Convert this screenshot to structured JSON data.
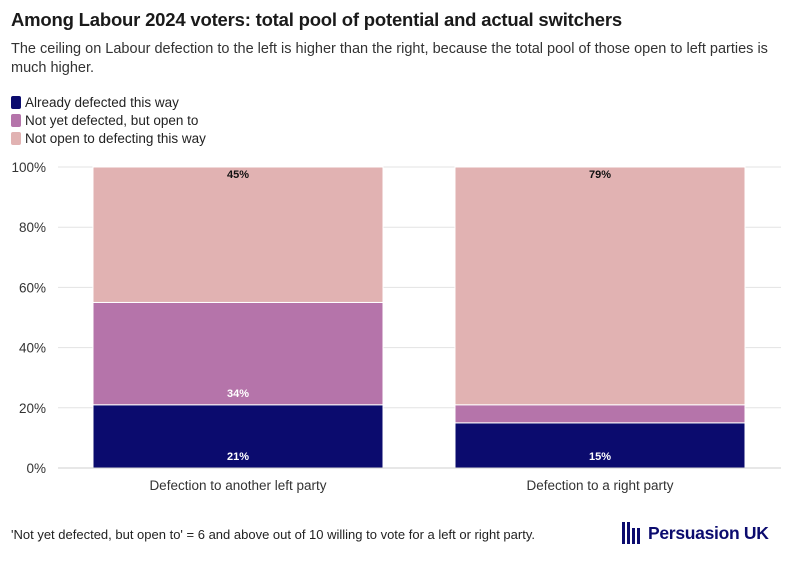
{
  "title": "Among Labour 2024 voters: total pool of potential and actual switchers",
  "subtitle": "The ceiling on Labour defection to the left is higher than the right, because the total pool of those open to left parties is much higher.",
  "footnote": "'Not yet defected, but open to' = 6 and above out of 10 willing to vote for a left or right party.",
  "brand": {
    "name": "Persuasion UK",
    "icon": "bars-logo-icon",
    "color": "#0b0b6e"
  },
  "chart_data": {
    "type": "bar",
    "stacked": true,
    "categories": [
      "Defection to another left party",
      "Defection to a right party"
    ],
    "series": [
      {
        "name": "Already defected this way",
        "color": "#0b0b6e",
        "values": [
          21,
          15
        ],
        "labels": [
          "21%",
          "15%"
        ]
      },
      {
        "name": "Not yet defected, but open to",
        "color": "#b574aa",
        "values": [
          34,
          6
        ],
        "labels": [
          "34%",
          ""
        ]
      },
      {
        "name": "Not open to defecting this way",
        "color": "#e1b2b2",
        "values": [
          45,
          79
        ],
        "labels": [
          "45%",
          "79%"
        ]
      }
    ],
    "ylim": [
      0,
      100
    ],
    "yticks": [
      "0%",
      "20%",
      "40%",
      "60%",
      "80%",
      "100%"
    ],
    "grid": true,
    "legend": "top-left"
  }
}
